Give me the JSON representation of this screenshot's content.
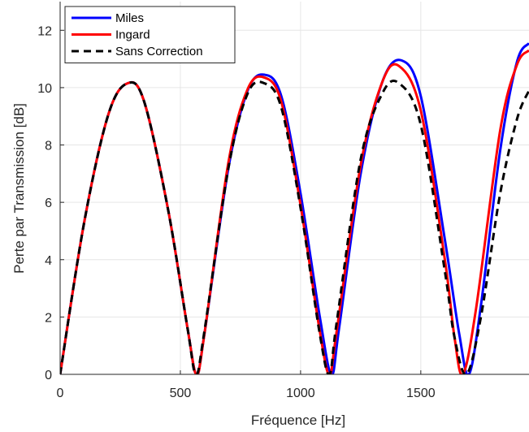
{
  "chart_data": {
    "type": "line",
    "title": "",
    "xlabel": "Fréquence [Hz]",
    "ylabel": "Perte par Transmission [dB]",
    "xlim": [
      0,
      1950
    ],
    "ylim": [
      0,
      13
    ],
    "xticks": [
      0,
      500,
      1000,
      1500
    ],
    "yticks": [
      0,
      2,
      4,
      6,
      8,
      10,
      12
    ],
    "xtick_labels": [
      "0",
      "500",
      "1000",
      "1500"
    ],
    "ytick_labels": [
      "0",
      "2",
      "4",
      "6",
      "8",
      "10",
      "12"
    ],
    "grid": true,
    "legend_position": "top-left",
    "series": [
      {
        "name": "Miles",
        "color": "#0000ff",
        "style": "solid",
        "x": [
          0,
          100,
          200,
          280,
          350,
          450,
          530,
          567,
          600,
          700,
          780,
          850,
          920,
          1000,
          1080,
          1128,
          1160,
          1250,
          1340,
          1420,
          1500,
          1600,
          1660,
          1700,
          1750,
          1830,
          1900,
          1950
        ],
        "y": [
          0,
          5.3,
          9.05,
          10.15,
          9.5,
          5.7,
          1.6,
          0,
          1.4,
          7.2,
          9.9,
          10.45,
          9.7,
          6.3,
          2.0,
          0,
          1.6,
          7.0,
          10.2,
          10.95,
          9.7,
          4.7,
          1.4,
          0,
          2.4,
          7.8,
          10.9,
          11.55
        ]
      },
      {
        "name": "Ingard",
        "color": "#ff0000",
        "style": "solid",
        "x": [
          0,
          100,
          200,
          280,
          350,
          450,
          530,
          567,
          600,
          700,
          780,
          850,
          920,
          1000,
          1080,
          1120,
          1150,
          1250,
          1340,
          1410,
          1500,
          1600,
          1640,
          1675,
          1730,
          1830,
          1900,
          1950
        ],
        "y": [
          0,
          5.3,
          9.05,
          10.15,
          9.5,
          5.7,
          1.6,
          0,
          1.4,
          7.4,
          9.95,
          10.35,
          9.5,
          5.9,
          1.5,
          0,
          1.5,
          7.3,
          10.2,
          10.75,
          9.2,
          4.0,
          1.3,
          0,
          2.3,
          8.5,
          10.8,
          11.3
        ]
      },
      {
        "name": "Sans Correction",
        "color": "#000000",
        "style": "dashed",
        "x": [
          0,
          100,
          200,
          280,
          350,
          450,
          530,
          565,
          600,
          700,
          780,
          850,
          920,
          1000,
          1080,
          1120,
          1150,
          1250,
          1340,
          1410,
          1500,
          1600,
          1640,
          1690,
          1750,
          1830,
          1900,
          1950
        ],
        "y": [
          0,
          5.3,
          9.05,
          10.15,
          9.5,
          5.7,
          1.6,
          0,
          1.5,
          7.2,
          9.8,
          10.15,
          9.3,
          5.8,
          1.4,
          0,
          1.8,
          7.5,
          9.8,
          10.15,
          8.7,
          3.6,
          1.3,
          0,
          2.0,
          6.3,
          8.9,
          9.9
        ]
      }
    ]
  }
}
